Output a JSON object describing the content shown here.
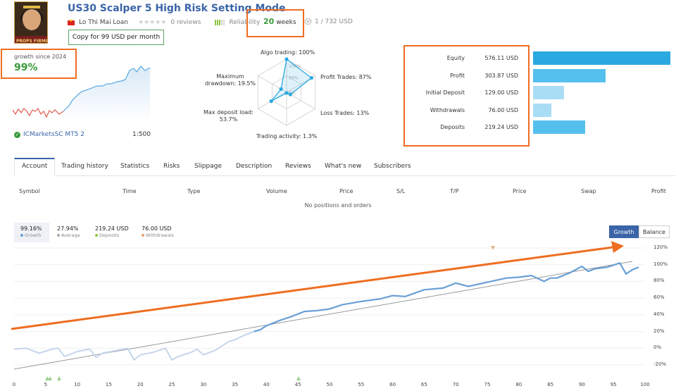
{
  "header": {
    "title": "US30 Scalper 5 High Risk Setting Mode",
    "author": "Lo Thi Mai Loan",
    "reviews": "0 reviews",
    "reliability_label": "Reliability",
    "weeks_value": "20",
    "weeks_unit": "weeks",
    "subscribers_price": "1 / 732 USD",
    "copy_button": "Copy for 99 USD per month",
    "avatar_text": "PROPS FIRMI"
  },
  "growth": {
    "label": "growth since 2024",
    "value": "99%"
  },
  "account": {
    "broker": "ICMarketsSC MT5 2",
    "leverage": "1:500"
  },
  "radar": {
    "axes": [
      {
        "label": "Algo trading: 100%",
        "value": 100
      },
      {
        "label": "Profit Trades: 87%",
        "value": 87
      },
      {
        "label": "Loss Trades: 13%",
        "value": 13
      },
      {
        "label": "Trading activity: 1.3%",
        "value": 1.3
      },
      {
        "label_line1": "Max deposit load:",
        "label_line2": "53.7%",
        "value": 53.7
      },
      {
        "label_line1": "Maximum",
        "label_line2": "drawdown: 19.5%",
        "value": 19.5
      }
    ],
    "ring_labels": [
      "100%",
      "50%",
      "0%"
    ]
  },
  "stats": [
    {
      "label": "Equity",
      "value": "576.11 USD",
      "amount": 576.11,
      "color": "#2aa8e0"
    },
    {
      "label": "Profit",
      "value": "303.87 USD",
      "amount": 303.87,
      "color": "#55c0ee"
    },
    {
      "label": "Initial Deposit",
      "value": "129.00 USD",
      "amount": 129.0,
      "color": "#a9dcf5"
    },
    {
      "label": "Withdrawals",
      "value": "76.00 USD",
      "amount": 76.0,
      "color": "#a9dcf5"
    },
    {
      "label": "Deposits",
      "value": "219.24 USD",
      "amount": 219.24,
      "color": "#55c0ee"
    }
  ],
  "tabs": [
    "Account",
    "Trading history",
    "Statistics",
    "Risks",
    "Slippage",
    "Description",
    "Reviews",
    "What's new",
    "Subscribers"
  ],
  "positions": {
    "columns": [
      "Symbol",
      "Time",
      "Type",
      "Volume",
      "Price",
      "S/L",
      "T/P",
      "Price",
      "Swap",
      "Profit"
    ],
    "empty_text": "No positions and orders"
  },
  "chart_stats": [
    {
      "value": "99.16%",
      "label": "Growth",
      "color": "#6a9fd8"
    },
    {
      "value": "27.94%",
      "label": "Average",
      "color": "#aaaaaa"
    },
    {
      "value": "219.24 USD",
      "label": "Deposits",
      "color": "#8dc63f"
    },
    {
      "value": "76.00 USD",
      "label": "Withdrawals",
      "color": "#e0a070"
    }
  ],
  "chart_toggle": {
    "growth": "Growth",
    "balance": "Balance"
  },
  "chart_data": {
    "type": "line",
    "x_ticks": [
      "0",
      "5",
      "10",
      "15",
      "20",
      "25",
      "30",
      "35",
      "40",
      "45",
      "50",
      "55",
      "60",
      "65",
      "70",
      "75",
      "80",
      "85",
      "90",
      "95",
      "100"
    ],
    "y_ticks": [
      "120%",
      "100%",
      "80%",
      "60%",
      "40%",
      "20%",
      "0%",
      "-20%"
    ],
    "xlim": [
      0,
      100
    ],
    "ylim": [
      -20,
      120
    ],
    "series": [
      {
        "values_x": [
          0,
          2,
          4,
          6,
          7,
          8,
          10,
          12,
          13,
          14,
          16,
          18,
          19,
          20,
          22,
          24,
          25,
          26,
          28,
          29,
          30,
          32,
          34,
          35,
          36,
          38,
          39,
          40,
          42,
          44,
          46,
          48,
          50,
          52,
          55,
          58,
          60,
          62,
          65,
          68,
          70,
          72,
          75,
          78,
          80,
          82,
          84,
          85,
          86,
          88,
          90,
          91,
          92,
          94,
          96,
          97,
          98,
          99
        ],
        "values_y": [
          -1,
          0,
          -6,
          -1,
          0,
          -10,
          -4,
          -1,
          -11,
          -6,
          -3,
          0,
          -14,
          -8,
          -5,
          0,
          -14,
          -10,
          -5,
          -1,
          -8,
          -2,
          8,
          10,
          14,
          20,
          22,
          27,
          33,
          38,
          44,
          45,
          47,
          52,
          56,
          59,
          63,
          62,
          70,
          72,
          78,
          74,
          79,
          84,
          85,
          87,
          80,
          84,
          84,
          90,
          98,
          92,
          95,
          97,
          102,
          89,
          94,
          97
        ]
      },
      {
        "values_x": [
          0,
          98
        ],
        "values_y": [
          -25,
          104
        ]
      }
    ]
  }
}
